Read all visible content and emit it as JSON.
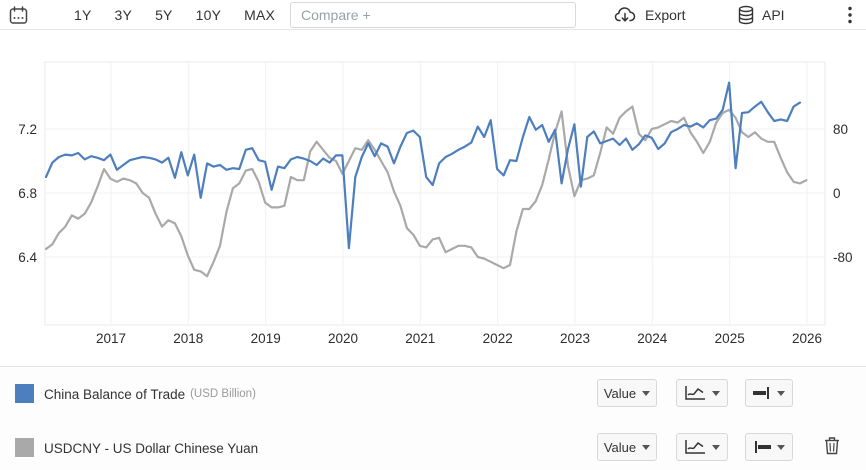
{
  "toolbar": {
    "ranges": [
      "1Y",
      "3Y",
      "5Y",
      "10Y",
      "MAX"
    ],
    "compare_placeholder": "Compare +",
    "export_label": "Export",
    "api_label": "API",
    "icons": [
      "calendar-icon",
      "cloud-download-icon",
      "database-icon",
      "kebab-menu-icon"
    ]
  },
  "chart_data": {
    "type": "line",
    "grid": true,
    "x_axis": {
      "labels": [
        "2017",
        "2018",
        "2019",
        "2020",
        "2021",
        "2022",
        "2023",
        "2024",
        "2025",
        "2026"
      ]
    },
    "left_axis": {
      "ticks": [
        "7.2",
        "6.8",
        "6.4"
      ],
      "range": [
        6.0,
        7.62
      ],
      "series": "USDCNY"
    },
    "right_axis": {
      "ticks": [
        "80",
        "0",
        "-80"
      ],
      "range": [
        -160,
        164
      ],
      "series": "China Balance of Trade"
    },
    "series": [
      {
        "name": "China Balance of Trade",
        "unit": "USD Billion",
        "axis": "right",
        "color": "#4d7ebd",
        "start": "2016-03",
        "interval": "monthly",
        "values": [
          20,
          38,
          45,
          48,
          47,
          50,
          42,
          46,
          44,
          41,
          48,
          29,
          35,
          41,
          43,
          45,
          44,
          42,
          38,
          44,
          19,
          51,
          22,
          48,
          -6,
          37,
          33,
          35,
          29,
          31,
          30,
          54,
          56,
          41,
          39,
          4,
          33,
          31,
          42,
          45,
          43,
          40,
          35,
          43,
          38,
          47,
          47,
          -69,
          20,
          45,
          62,
          46,
          62,
          58,
          37,
          58,
          75,
          78,
          70,
          20,
          10,
          37,
          45,
          49,
          54,
          58,
          63,
          83,
          70,
          91,
          30,
          22,
          41,
          40,
          70,
          95,
          79,
          85,
          64,
          79,
          12,
          55,
          86,
          8,
          70,
          77,
          62,
          65,
          68,
          60,
          68,
          54,
          61,
          72,
          69,
          55,
          62,
          76,
          80,
          85,
          83,
          87,
          82,
          91,
          93,
          104,
          138,
          31,
          100,
          101,
          108,
          114,
          101,
          90,
          92,
          90,
          108,
          113
        ]
      },
      {
        "name": "USDCNY - US Dollar Chinese Yuan",
        "unit": "",
        "axis": "left",
        "color": "#a9a9a9",
        "start": "2016-03",
        "interval": "monthly",
        "values": [
          6.45,
          6.48,
          6.55,
          6.59,
          6.66,
          6.64,
          6.67,
          6.74,
          6.84,
          6.95,
          6.89,
          6.87,
          6.89,
          6.88,
          6.86,
          6.8,
          6.77,
          6.67,
          6.59,
          6.63,
          6.61,
          6.53,
          6.41,
          6.32,
          6.31,
          6.28,
          6.37,
          6.47,
          6.68,
          6.83,
          6.86,
          6.94,
          6.95,
          6.87,
          6.74,
          6.71,
          6.71,
          6.72,
          6.9,
          6.88,
          6.88,
          7.06,
          7.12,
          7.07,
          7.02,
          7.0,
          6.92,
          7.0,
          7.08,
          7.07,
          7.13,
          7.07,
          7.0,
          6.93,
          6.81,
          6.72,
          6.58,
          6.54,
          6.47,
          6.46,
          6.51,
          6.52,
          6.43,
          6.45,
          6.47,
          6.47,
          6.46,
          6.4,
          6.39,
          6.37,
          6.35,
          6.33,
          6.35,
          6.56,
          6.7,
          6.7,
          6.75,
          6.85,
          7.01,
          7.18,
          7.31,
          6.97,
          6.78,
          6.88,
          6.89,
          6.91,
          7.05,
          7.21,
          7.17,
          7.27,
          7.31,
          7.34,
          7.17,
          7.13,
          7.2,
          7.21,
          7.23,
          7.25,
          7.24,
          7.27,
          7.18,
          7.12,
          7.05,
          7.12,
          7.24,
          7.3,
          7.32,
          7.27,
          7.18,
          7.15,
          7.18,
          7.14,
          7.12,
          7.12,
          7.02,
          6.93,
          6.87,
          6.86,
          6.88
        ]
      }
    ]
  },
  "legend": {
    "rows": [
      {
        "swatch_color": "#4d7ebd",
        "label": "China Balance of Trade",
        "sublabel": "(USD Billion)",
        "value_button": "Value",
        "icons": [
          "line-chart-icon",
          "line-style-right-cap-icon"
        ]
      },
      {
        "swatch_color": "#a9a9a9",
        "label": "USDCNY - US Dollar Chinese Yuan",
        "sublabel": "",
        "value_button": "Value",
        "icons": [
          "line-chart-icon",
          "line-style-left-cap-icon",
          "trash-icon"
        ]
      }
    ]
  }
}
